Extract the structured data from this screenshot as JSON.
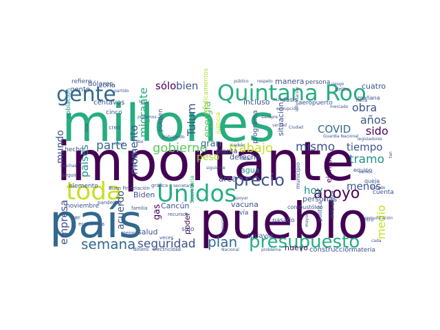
{
  "colors": {
    "dark_purple": "#440154",
    "indigo": "#3b528b",
    "blue": "#31688e",
    "teal": "#21908c",
    "green_teal": "#27ad81",
    "green": "#5dc863",
    "lime": "#aadc32",
    "yellow": "#fde725"
  },
  "words": [
    {
      "text": "millones",
      "color": "#27ad81"
    },
    {
      "text": "importante",
      "color": "#440154"
    },
    {
      "text": "país",
      "color": "#31688e"
    },
    {
      "text": "pueblo",
      "color": "#440154"
    },
    {
      "text": "Quintana Roo",
      "color": "#27ad81"
    },
    {
      "text": "gente",
      "color": "#31688e"
    },
    {
      "text": "Unidos",
      "color": "#27ad81"
    },
    {
      "text": "toda",
      "color": "#c8e020"
    },
    {
      "text": "presupuesto",
      "color": "#27ad81"
    },
    {
      "text": "precio",
      "color": "#3b528b"
    },
    {
      "text": "apoyo",
      "color": "#440154"
    },
    {
      "text": "gobierno",
      "color": "#5dc863"
    },
    {
      "text": "trabajo",
      "color": "#c8e020"
    },
    {
      "text": "semana",
      "color": "#31688e"
    },
    {
      "text": "seguridad",
      "color": "#3b528b"
    },
    {
      "text": "plan",
      "color": "#31688e"
    },
    {
      "text": "parte",
      "color": "#31688e"
    },
    {
      "text": "mismo",
      "color": "#3b528b"
    },
    {
      "text": "tiempo",
      "color": "#3b528b"
    },
    {
      "text": "años",
      "color": "#3b528b"
    },
    {
      "text": "obra",
      "color": "#3b528b"
    },
    {
      "text": "COVID",
      "color": "#31688e"
    },
    {
      "text": "sido",
      "color": "#440154"
    },
    {
      "text": "tramo",
      "color": "#21908c"
    },
    {
      "text": "menos",
      "color": "#3b528b"
    },
    {
      "text": "medio",
      "color": "#c8e020"
    },
    {
      "text": "hoy",
      "color": "#21908c"
    },
    {
      "text": "mundo",
      "color": "#3b528b"
    },
    {
      "text": "empresa",
      "color": "#3b528b"
    },
    {
      "text": "países",
      "color": "#21908c"
    },
    {
      "text": "migrante",
      "color": "#27ad81"
    },
    {
      "text": "momento",
      "color": "#3b528b"
    },
    {
      "text": "Tulum",
      "color": "#3b528b"
    },
    {
      "text": "energía",
      "color": "#5dc863"
    },
    {
      "text": "sólo",
      "color": "#440154"
    },
    {
      "text": "bien",
      "color": "#3b528b"
    },
    {
      "text": "peso",
      "color": "#aadc32"
    },
    {
      "text": "gran",
      "color": "#31688e"
    },
    {
      "text": "área",
      "color": "#3b528b"
    },
    {
      "text": "agua",
      "color": "#21908c"
    },
    {
      "text": "acuerdo",
      "color": "#3b528b"
    },
    {
      "text": "gas",
      "color": "#440154"
    },
    {
      "text": "Biden",
      "color": "#3b528b"
    },
    {
      "text": "Cancún",
      "color": "#3b528b"
    },
    {
      "text": "salud",
      "color": "#3b528b"
    },
    {
      "text": "vacuna",
      "color": "#3b528b"
    },
    {
      "text": "personas",
      "color": "#3b528b"
    },
    {
      "text": "ejemplo",
      "color": "#440154"
    },
    {
      "text": "derecho",
      "color": "#3b528b"
    },
    {
      "text": "manera",
      "color": "#3b528b"
    },
    {
      "text": "persona",
      "color": "#3b528b"
    },
    {
      "text": "cuatro",
      "color": "#3b528b"
    },
    {
      "text": "incluso",
      "color": "#3b528b"
    },
    {
      "text": "situación",
      "color": "#3b528b"
    },
    {
      "text": "programa",
      "color": "#3b528b"
    },
    {
      "text": "planta",
      "color": "#3b528b"
    },
    {
      "text": "zona",
      "color": "#3b528b"
    },
    {
      "text": "dólares",
      "color": "#3b528b"
    },
    {
      "text": "centavos",
      "color": "#3b528b"
    },
    {
      "text": "gente",
      "color": "#3b528b"
    },
    {
      "text": "refiere",
      "color": "#3b528b"
    },
    {
      "text": "población",
      "color": "#21908c"
    },
    {
      "text": "cinco",
      "color": "#3b528b"
    },
    {
      "text": "creo",
      "color": "#3b528b"
    },
    {
      "text": "hecho",
      "color": "#3b528b"
    },
    {
      "text": "elemento",
      "color": "#3b528b"
    },
    {
      "text": "noviembre",
      "color": "#3b528b"
    },
    {
      "text": "ver",
      "color": "#3b528b"
    },
    {
      "text": "económica",
      "color": "#3b528b"
    },
    {
      "text": "seguir",
      "color": "#3b528b"
    },
    {
      "text": "mejor",
      "color": "#3b528b"
    },
    {
      "text": "familia",
      "color": "#3b528b"
    },
    {
      "text": "pandemia",
      "color": "#3b528b"
    },
    {
      "text": "dinero",
      "color": "#3b528b"
    },
    {
      "text": "electricidad",
      "color": "#3b528b"
    },
    {
      "text": "Buen Fin",
      "color": "#3b528b"
    },
    {
      "text": "relación",
      "color": "#3b528b"
    },
    {
      "text": "gráfica",
      "color": "#3b528b"
    },
    {
      "text": "recursos",
      "color": "#3b528b"
    },
    {
      "text": "poder",
      "color": "#440154"
    },
    {
      "text": "veces",
      "color": "#3b528b"
    },
    {
      "text": "sino",
      "color": "#3b528b"
    },
    {
      "text": "todavía",
      "color": "#3b528b"
    },
    {
      "text": "nuevo",
      "color": "#440154"
    },
    {
      "text": "pasado",
      "color": "#3b528b"
    },
    {
      "text": "construcción",
      "color": "#3b528b"
    },
    {
      "text": "materia",
      "color": "#3b528b"
    },
    {
      "text": "problema",
      "color": "#3b528b"
    },
    {
      "text": "Nacional",
      "color": "#3b528b"
    },
    {
      "text": "vía",
      "color": "#3b528b"
    },
    {
      "text": "combustóleo",
      "color": "#3b528b"
    },
    {
      "text": "cuenta",
      "color": "#3b528b"
    },
    {
      "text": "iniciativa",
      "color": "#3b528b"
    },
    {
      "text": "litro",
      "color": "#3b528b"
    },
    {
      "text": "política",
      "color": "#3b528b"
    },
    {
      "text": "queja",
      "color": "#3b528b"
    },
    {
      "text": "equipo",
      "color": "#3b528b"
    },
    {
      "text": "dosis",
      "color": "#3b528b"
    },
    {
      "text": "aeropuerto",
      "color": "#3b528b"
    },
    {
      "text": "mañana",
      "color": "#3b528b"
    },
    {
      "text": "delito",
      "color": "#3b528b"
    },
    {
      "text": "público",
      "color": "#3b528b"
    },
    {
      "text": "respeto",
      "color": "#3b528b"
    },
    {
      "text": "justicia",
      "color": "#c8e020"
    },
    {
      "text": "Secretaría",
      "color": "#27ad81"
    },
    {
      "text": "medicamentos",
      "color": "#aadc32"
    },
    {
      "text": "pueden",
      "color": "#3b528b"
    },
    {
      "text": "municipio",
      "color": "#3b528b"
    },
    {
      "text": "general",
      "color": "#3b528b"
    },
    {
      "text": "Tren Maya",
      "color": "#3b528b"
    },
    {
      "text": "siempre",
      "color": "#3b528b"
    },
    {
      "text": "verdad",
      "color": "#3b528b"
    },
    {
      "text": "hizo",
      "color": "#3b528b"
    },
    {
      "text": "apoyar",
      "color": "#3b528b"
    },
    {
      "text": "Ciudad",
      "color": "#3b528b"
    },
    {
      "text": "legisladores",
      "color": "#3b528b"
    },
    {
      "text": "riesgo",
      "color": "#3b528b"
    },
    {
      "text": "partido",
      "color": "#3b528b"
    },
    {
      "text": "cabo",
      "color": "#3b528b"
    },
    {
      "text": "vemos",
      "color": "#3b528b"
    },
    {
      "text": "hacia",
      "color": "#3b528b"
    },
    {
      "text": "vida",
      "color": "#3b528b"
    },
    {
      "text": "podemos",
      "color": "#3b528b"
    },
    {
      "text": "lugar",
      "color": "#3b528b"
    },
    {
      "text": "carbón",
      "color": "#3b528b"
    },
    {
      "text": "trabajando",
      "color": "#3b528b"
    },
    {
      "text": "secretario",
      "color": "#3b528b"
    },
    {
      "text": "siguiente",
      "color": "#3b528b"
    },
    {
      "text": "mayor",
      "color": "#3b528b"
    },
    {
      "text": "corrupción",
      "color": "#3b528b"
    },
    {
      "text": "información",
      "color": "#3b528b"
    },
    {
      "text": "comunicación",
      "color": "#3b528b"
    },
    {
      "text": "cada",
      "color": "#3b528b"
    },
    {
      "text": "final",
      "color": "#3b528b"
    },
    {
      "text": "muchas",
      "color": "#3b528b"
    },
    {
      "text": "tan",
      "color": "#3b528b"
    },
    {
      "text": "Guardia Nacional",
      "color": "#3b528b"
    },
    {
      "text": "mercado",
      "color": "#3b528b"
    },
    {
      "text": "Estado",
      "color": "#3b528b"
    },
    {
      "text": "nivel",
      "color": "#3b528b"
    },
    {
      "text": "vendedores",
      "color": "#3b528b"
    }
  ]
}
